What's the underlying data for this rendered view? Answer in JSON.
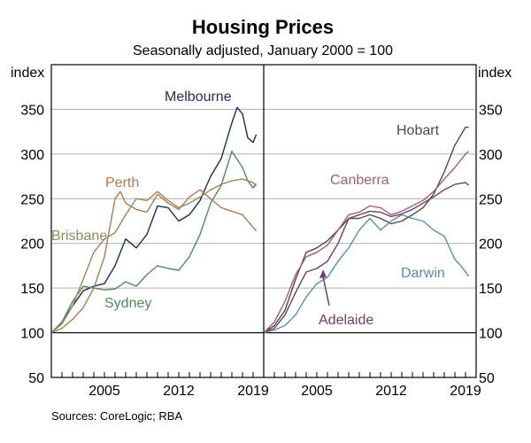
{
  "chart_data": {
    "type": "line",
    "title": "Housing Prices",
    "subtitle": "Seasonally adjusted, January 2000 = 100",
    "source": "Sources:   CoreLogic; RBA",
    "y_unit_left": "index",
    "y_unit_right": "index",
    "ylim": [
      50,
      400
    ],
    "yticks": [
      50,
      100,
      150,
      200,
      250,
      300,
      350
    ],
    "ytick_labels": [
      "50",
      "100",
      "150",
      "200",
      "250",
      "300",
      "350"
    ],
    "xlim": [
      2000,
      2020
    ],
    "xticks": [
      2005,
      2012,
      2019
    ],
    "xtick_labels": [
      "2005",
      "2012",
      "2019"
    ],
    "reference_line": 100,
    "panels": [
      {
        "name": "left",
        "series": [
          {
            "name": "Melbourne",
            "color": "#1f2d55",
            "x": [
              2000,
              2001,
              2002,
              2003,
              2004,
              2005,
              2006,
              2007,
              2008,
              2009,
              2010,
              2011,
              2012,
              2013,
              2014,
              2015,
              2016,
              2017,
              2017.5,
              2018,
              2018.5,
              2019,
              2019.3
            ],
            "values": [
              100,
              112,
              130,
              147,
              152,
              155,
              175,
              205,
              195,
              210,
              242,
              240,
              225,
              232,
              248,
              275,
              295,
              335,
              352,
              345,
              318,
              313,
              322
            ]
          },
          {
            "name": "Sydney",
            "color": "#4f8a5c",
            "x": [
              2000,
              2001,
              2002,
              2003,
              2004,
              2005,
              2006,
              2007,
              2008,
              2009,
              2010,
              2011,
              2012,
              2013,
              2014,
              2015,
              2016,
              2017,
              2018,
              2018.5,
              2019,
              2019.3
            ],
            "values": [
              100,
              112,
              135,
              152,
              150,
              148,
              149,
              157,
              152,
              165,
              175,
              172,
              170,
              185,
              210,
              245,
              265,
              303,
              285,
              270,
              262,
              267
            ]
          },
          {
            "name": "Perth",
            "color": "#b07a52",
            "x": [
              2000,
              2001,
              2002,
              2003,
              2004,
              2005,
              2006,
              2006.5,
              2007,
              2008,
              2009,
              2010,
              2011,
              2012,
              2013,
              2014,
              2015,
              2016,
              2017,
              2018,
              2019,
              2019.3
            ],
            "values": [
              100,
              105,
              115,
              128,
              150,
              185,
              250,
              258,
              245,
              238,
              235,
              255,
              245,
              238,
              252,
              260,
              250,
              240,
              236,
              232,
              218,
              214
            ]
          },
          {
            "name": "Brisbane",
            "color": "#948b5c",
            "x": [
              2000,
              2001,
              2002,
              2003,
              2004,
              2005,
              2006,
              2007,
              2008,
              2009,
              2010,
              2011,
              2012,
              2013,
              2014,
              2015,
              2016,
              2017,
              2018,
              2019,
              2019.3
            ],
            "values": [
              100,
              110,
              130,
              160,
              190,
              205,
              212,
              232,
              250,
              248,
              258,
              248,
              240,
              245,
              252,
              260,
              266,
              270,
              272,
              268,
              264
            ]
          }
        ]
      },
      {
        "name": "right",
        "series": [
          {
            "name": "Hobart",
            "color": "#56473a",
            "x": [
              2000,
              2001,
              2002,
              2003,
              2004,
              2005,
              2006,
              2007,
              2008,
              2009,
              2010,
              2011,
              2012,
              2013,
              2014,
              2015,
              2016,
              2017,
              2018,
              2019,
              2019.3
            ],
            "values": [
              100,
              108,
              125,
              160,
              190,
              195,
              203,
              215,
              228,
              228,
              232,
              228,
              222,
              225,
              232,
              240,
              255,
              280,
              310,
              330,
              330
            ]
          },
          {
            "name": "Canberra",
            "color": "#a55f75",
            "x": [
              2000,
              2001,
              2002,
              2003,
              2004,
              2005,
              2006,
              2007,
              2008,
              2009,
              2010,
              2011,
              2012,
              2013,
              2014,
              2015,
              2016,
              2017,
              2018,
              2019,
              2019.3
            ],
            "values": [
              100,
              112,
              135,
              165,
              185,
              190,
              198,
              215,
              232,
              235,
              242,
              240,
              232,
              236,
              242,
              248,
              258,
              272,
              285,
              300,
              303
            ]
          },
          {
            "name": "Adelaide",
            "color": "#6b3f6e",
            "x": [
              2000,
              2001,
              2002,
              2003,
              2004,
              2005,
              2006,
              2007,
              2008,
              2009,
              2010,
              2011,
              2012,
              2013,
              2014,
              2015,
              2016,
              2017,
              2018,
              2019,
              2019.3
            ],
            "values": [
              100,
              105,
              120,
              145,
              168,
              172,
              180,
              200,
              228,
              232,
              236,
              235,
              230,
              233,
              238,
              245,
              252,
              260,
              266,
              268,
              265
            ]
          },
          {
            "name": "Darwin",
            "color": "#5a8fa8",
            "x": [
              2000,
              2001,
              2002,
              2003,
              2004,
              2005,
              2006,
              2007,
              2008,
              2009,
              2010,
              2011,
              2012,
              2013,
              2014,
              2015,
              2016,
              2017,
              2018,
              2018.5,
              2019,
              2019.3
            ],
            "values": [
              100,
              103,
              108,
              120,
              140,
              155,
              162,
              180,
              195,
              215,
              228,
              215,
              225,
              232,
              228,
              225,
              215,
              208,
              182,
              176,
              168,
              163
            ]
          }
        ]
      }
    ]
  }
}
